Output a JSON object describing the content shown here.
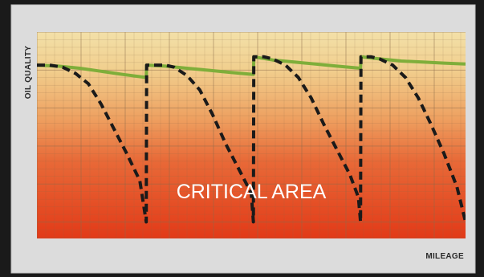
{
  "chart_data": {
    "type": "line",
    "title": "",
    "xlabel": "MILEAGE",
    "ylabel": "OIL QUALITY",
    "xlim": [
      0,
      100
    ],
    "ylim": [
      0,
      100
    ],
    "grid": true,
    "annotation": "CRITICAL AREA",
    "colors": {
      "background_frame": "#1a1a1a",
      "panel": "#dcdcdc",
      "gradient_top": "#f3e0a8",
      "gradient_mid": "#eea060",
      "gradient_bottom": "#e23a18",
      "grid": "#8a6a4a",
      "dashed_series": "#1a1a1a",
      "solid_series": "#7fae3a"
    },
    "series": [
      {
        "style": "dashed",
        "x": [
          0,
          3,
          6,
          9,
          12,
          15,
          18,
          21,
          24,
          25.5,
          25.6,
          28,
          30,
          32,
          35,
          38,
          41,
          44,
          47,
          50,
          50.5,
          50.6,
          53,
          55,
          58,
          61,
          64,
          67,
          70,
          73,
          75,
          75.5,
          75.6,
          78,
          80,
          83,
          86,
          89,
          92,
          95,
          98,
          100
        ],
        "y": [
          84,
          84,
          83,
          80,
          75,
          65,
          53,
          41,
          28,
          8,
          84,
          84,
          84,
          83,
          79,
          72,
          60,
          46,
          34,
          22,
          8,
          88,
          88,
          87,
          84,
          78,
          68,
          55,
          43,
          31,
          20,
          8,
          88,
          88,
          87,
          84,
          78,
          68,
          55,
          41,
          25,
          8
        ]
      },
      {
        "style": "solid",
        "x": [
          0,
          5,
          10,
          15,
          20,
          25.5,
          25.6,
          30,
          35,
          40,
          45,
          50.5,
          50.6,
          55,
          60,
          65,
          70,
          75.5,
          75.6,
          80,
          85,
          90,
          95,
          100
        ],
        "y": [
          84,
          83.5,
          82.5,
          81,
          79.5,
          78,
          84,
          83.5,
          82.5,
          81.5,
          80.5,
          79.5,
          88,
          86.5,
          85.5,
          84.5,
          83.5,
          82.5,
          88,
          87,
          86,
          85.5,
          85,
          84.5
        ]
      }
    ]
  }
}
